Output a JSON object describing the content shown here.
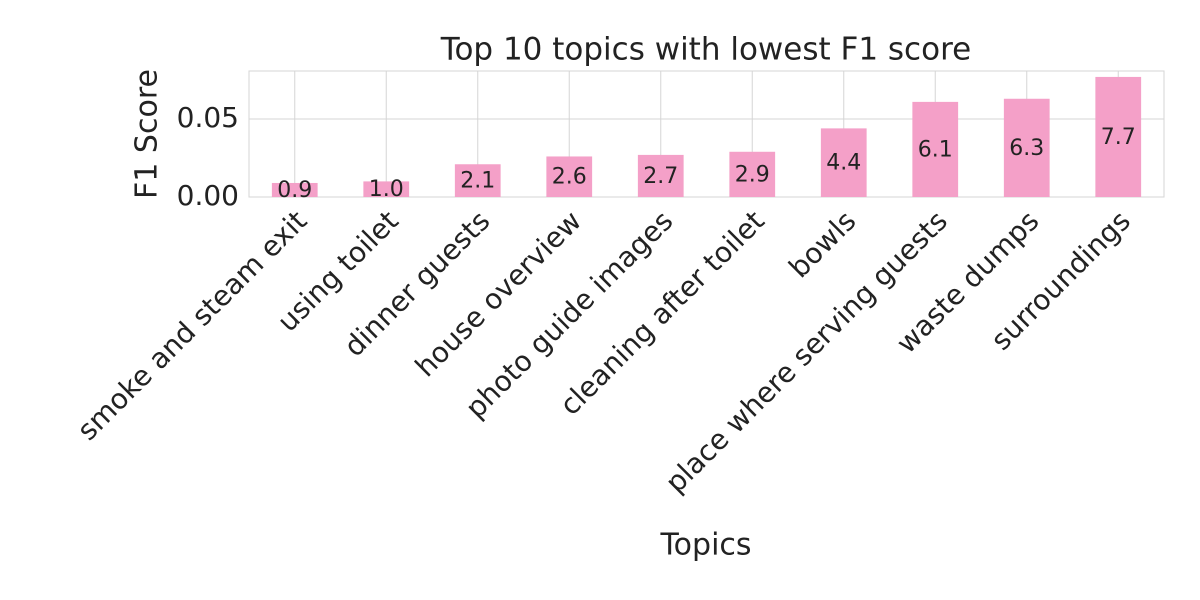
{
  "chart_data": {
    "type": "bar",
    "title": "Top 10 topics with lowest F1 score",
    "xlabel": "Topics",
    "ylabel": "F1 Score",
    "categories": [
      "smoke and steam exit",
      "using toilet",
      "dinner guests",
      "house overview",
      "photo guide images",
      "cleaning after toilet",
      "bowls",
      "place where serving guests",
      "waste dumps",
      "surroundings"
    ],
    "values": [
      0.009,
      0.01,
      0.021,
      0.026,
      0.027,
      0.029,
      0.044,
      0.061,
      0.063,
      0.077
    ],
    "value_labels": [
      "0.9",
      "1.0",
      "2.1",
      "2.6",
      "2.7",
      "2.9",
      "4.4",
      "6.1",
      "6.3",
      "7.7"
    ],
    "color": "#f4a0c8",
    "ylim": [
      0,
      0.0808
    ],
    "yticks": [
      {
        "value": 0,
        "label": "0.00"
      },
      {
        "value": 0.05,
        "label": "0.05"
      }
    ],
    "grid": true
  }
}
